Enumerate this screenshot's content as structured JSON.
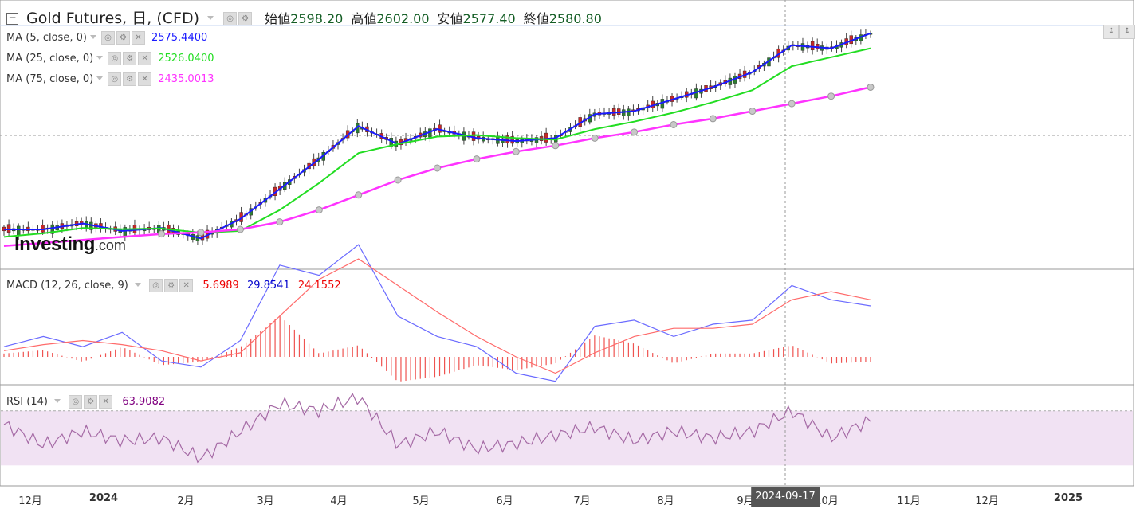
{
  "title": "Gold Futures, 日, (CFD)",
  "ohlc": [
    {
      "label": "始値",
      "value": "2598.20"
    },
    {
      "label": "高値",
      "value": "2602.00"
    },
    {
      "label": "安値",
      "value": "2577.40"
    },
    {
      "label": "終値",
      "value": "2580.80"
    }
  ],
  "indicators": [
    {
      "name": "MA (5, close, 0)",
      "value": "2575.4400",
      "color": "#1a1aff"
    },
    {
      "name": "MA (25, close, 0)",
      "value": "2526.0400",
      "color": "#22dd22"
    },
    {
      "name": "MA (75, close, 0)",
      "value": "2435.0013",
      "color": "#ff33ff"
    }
  ],
  "macd": {
    "name": "MACD (12, 26, close, 9)",
    "values": [
      "5.6989",
      "29.8541",
      "24.1552"
    ],
    "colors": [
      "#e00",
      "#00c",
      "#e00"
    ]
  },
  "rsi": {
    "name": "RSI (14)",
    "value": "63.9082",
    "color": "#800080",
    "band_color": "#f1e2f3"
  },
  "logo": {
    "brand": "Investing",
    "suffix": ".com"
  },
  "cursor_date": "2024-09-17",
  "x_ticks": [
    "12月",
    "2024",
    "2月",
    "3月",
    "4月",
    "5月",
    "6月",
    "7月",
    "8月",
    "9月",
    "10月",
    "11月",
    "12月",
    "2025"
  ],
  "chart_data": {
    "type": "line",
    "title": "Gold Futures, 日, (CFD)",
    "x": [
      "2023-12-01",
      "2023-12-15",
      "2024-01-01",
      "2024-01-15",
      "2024-02-01",
      "2024-02-15",
      "2024-03-01",
      "2024-03-15",
      "2024-04-01",
      "2024-04-15",
      "2024-05-01",
      "2024-05-15",
      "2024-06-01",
      "2024-06-15",
      "2024-07-01",
      "2024-07-15",
      "2024-08-01",
      "2024-08-15",
      "2024-09-01",
      "2024-09-15",
      "2024-10-01",
      "2024-10-15",
      "2024-10-22"
    ],
    "series": [
      {
        "name": "MA (5, close, 0)",
        "values": [
          2035,
          2035,
          2055,
          2030,
          2040,
          2005,
          2070,
          2170,
          2270,
          2380,
          2320,
          2370,
          2340,
          2330,
          2340,
          2420,
          2430,
          2470,
          2510,
          2560,
          2650,
          2640,
          2690
        ]
      },
      {
        "name": "MA (25, close, 0)",
        "values": [
          2010,
          2022,
          2040,
          2036,
          2038,
          2024,
          2030,
          2100,
          2190,
          2290,
          2320,
          2345,
          2350,
          2340,
          2335,
          2370,
          2395,
          2425,
          2460,
          2500,
          2580,
          2610,
          2640
        ]
      },
      {
        "name": "MA (75, close, 0)",
        "values": [
          1980,
          1990,
          2000,
          2010,
          2020,
          2025,
          2035,
          2060,
          2100,
          2150,
          2200,
          2240,
          2270,
          2295,
          2315,
          2340,
          2360,
          2385,
          2405,
          2430,
          2455,
          2480,
          2510
        ]
      }
    ],
    "macd": {
      "macd": [
        5,
        10,
        5,
        12,
        -2,
        -5,
        8,
        45,
        40,
        55,
        20,
        10,
        5,
        -8,
        -12,
        15,
        18,
        10,
        16,
        18,
        35,
        28,
        25
      ],
      "signal": [
        3,
        6,
        8,
        6,
        3,
        -2,
        2,
        20,
        38,
        48,
        35,
        22,
        10,
        0,
        -8,
        2,
        10,
        14,
        14,
        16,
        28,
        32,
        28
      ]
    },
    "rsi": [
      60,
      45,
      55,
      48,
      50,
      35,
      55,
      75,
      70,
      80,
      45,
      55,
      42,
      46,
      52,
      58,
      48,
      55,
      50,
      55,
      70,
      50,
      63
    ],
    "rsi_band": [
      30,
      70
    ]
  }
}
